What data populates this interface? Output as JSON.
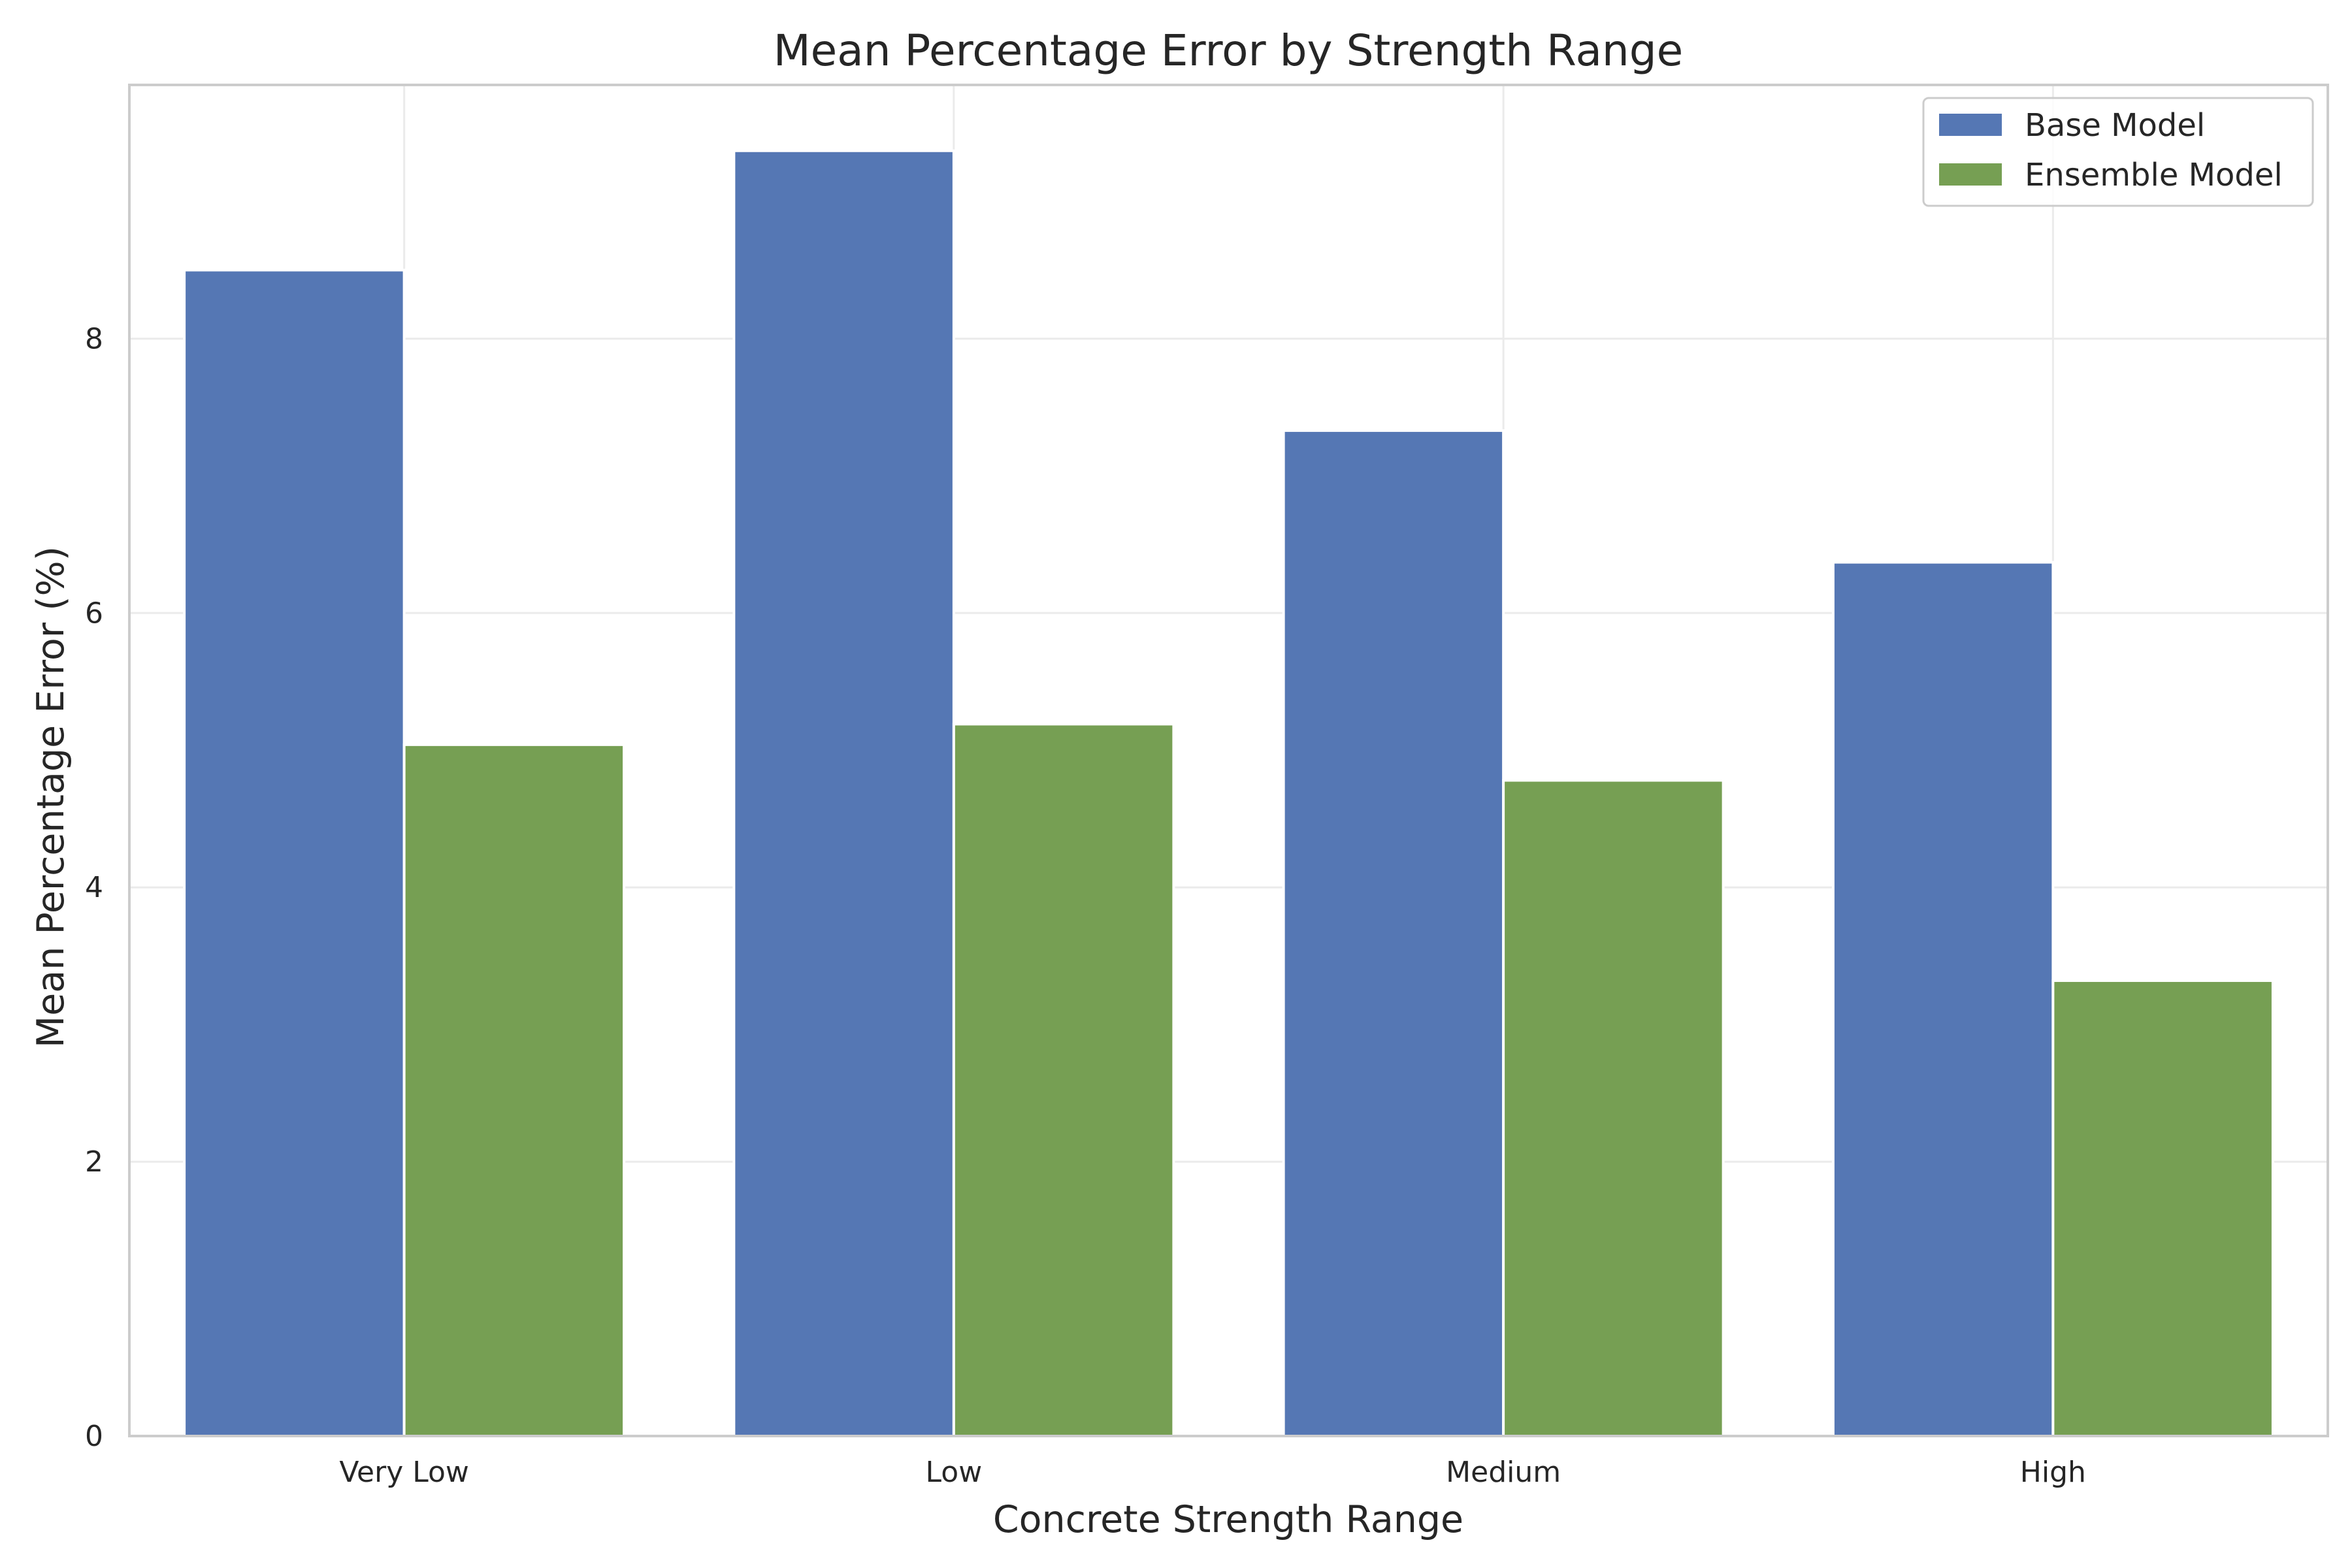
{
  "chart_data": {
    "type": "bar",
    "title": "Mean Percentage Error by Strength Range",
    "xlabel": "Concrete Strength Range",
    "ylabel": "Mean Percentage Error (%)",
    "categories": [
      "Very Low",
      "Low",
      "Medium",
      "High"
    ],
    "series": [
      {
        "name": "Base Model",
        "color": "#5577b4",
        "values": [
          8.5,
          9.37,
          7.33,
          6.37
        ]
      },
      {
        "name": "Ensemble Model",
        "color": "#769f53",
        "values": [
          5.04,
          5.19,
          4.78,
          3.32
        ]
      }
    ],
    "ylim": [
      0,
      9.85
    ],
    "yticks": [
      0,
      2,
      4,
      6,
      8
    ],
    "grid": true,
    "legend": "top-right"
  }
}
